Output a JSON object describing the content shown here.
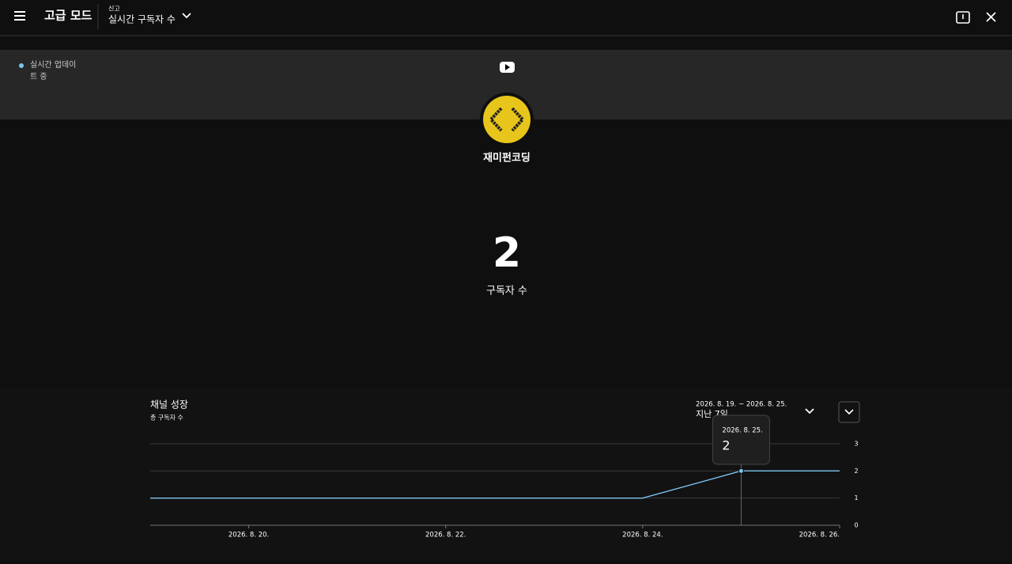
{
  "header": {
    "title": "고급 모드",
    "menu_caption": "신고",
    "menu_title": "실시간 구독자 수"
  },
  "status": "실시간 업데이트 중",
  "channel": {
    "name": "재미펀코딩"
  },
  "counter": {
    "value": 2,
    "label": "구독자 수"
  },
  "chart_data": {
    "type": "line",
    "title": "채널 성장",
    "subtitle": "총 구독자 수",
    "date_range": "2026. 8. 19. ~ 2026. 8. 25.",
    "period": "지난 7일",
    "x": [
      19,
      20,
      21,
      22,
      23,
      24,
      25,
      26
    ],
    "values": [
      1,
      1,
      1,
      1,
      1,
      1,
      2,
      2
    ],
    "color": "#7cc4f0",
    "xlim": [
      19,
      26
    ],
    "xticks": [
      {
        "value": 20,
        "label": "2026. 8. 20."
      },
      {
        "value": 22,
        "label": "2026. 8. 22."
      },
      {
        "value": 24,
        "label": "2026. 8. 24."
      },
      {
        "value": 26,
        "label": "2026. 8. 26."
      }
    ],
    "ylim": [
      0,
      3
    ],
    "yticks": [
      0,
      1,
      2,
      3
    ],
    "grid": true,
    "tooltip": {
      "date": "2026. 8. 25.",
      "value": 2
    }
  }
}
